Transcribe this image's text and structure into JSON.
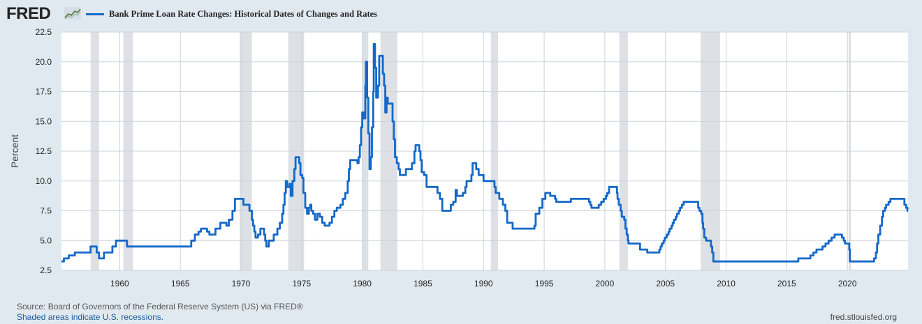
{
  "header": {
    "logo_text": "FRED",
    "logo_icon": "line-chart-icon"
  },
  "chart_data": {
    "type": "line",
    "title": "Bank Prime Loan Rate Changes: Historical Dates of Changes and Rates",
    "xlabel": "",
    "ylabel": "Percent",
    "xlim": [
      1955.2,
      2025.0
    ],
    "ylim": [
      2.5,
      22.5
    ],
    "yticks": [
      "2.5",
      "5.0",
      "7.5",
      "10.0",
      "12.5",
      "15.0",
      "17.5",
      "20.0",
      "22.5"
    ],
    "xticks": [
      "1960",
      "1965",
      "1970",
      "1975",
      "1980",
      "1985",
      "1990",
      "1995",
      "2000",
      "2005",
      "2010",
      "2015",
      "2020"
    ],
    "grid": true,
    "legend_position": "top-left",
    "series": [
      {
        "name": "Bank Prime Loan Rate Changes: Historical Dates of Changes and Rates",
        "color": "#1468c8",
        "step": true,
        "points": [
          [
            1955.2,
            3.25
          ],
          [
            1955.4,
            3.5
          ],
          [
            1955.8,
            3.75
          ],
          [
            1956.3,
            4.0
          ],
          [
            1957.6,
            4.5
          ],
          [
            1958.1,
            4.0
          ],
          [
            1958.3,
            3.5
          ],
          [
            1958.7,
            4.0
          ],
          [
            1959.4,
            4.5
          ],
          [
            1959.7,
            5.0
          ],
          [
            1960.6,
            4.5
          ],
          [
            1965.9,
            5.0
          ],
          [
            1966.2,
            5.5
          ],
          [
            1966.5,
            5.75
          ],
          [
            1966.7,
            6.0
          ],
          [
            1967.2,
            5.75
          ],
          [
            1967.4,
            5.5
          ],
          [
            1967.9,
            6.0
          ],
          [
            1968.3,
            6.5
          ],
          [
            1968.8,
            6.25
          ],
          [
            1969.0,
            6.75
          ],
          [
            1969.3,
            7.5
          ],
          [
            1969.5,
            8.5
          ],
          [
            1970.2,
            8.0
          ],
          [
            1970.7,
            7.5
          ],
          [
            1970.9,
            6.75
          ],
          [
            1971.0,
            6.25
          ],
          [
            1971.1,
            5.75
          ],
          [
            1971.2,
            5.25
          ],
          [
            1971.4,
            5.5
          ],
          [
            1971.6,
            6.0
          ],
          [
            1971.9,
            5.5
          ],
          [
            1972.0,
            5.0
          ],
          [
            1972.1,
            4.5
          ],
          [
            1972.3,
            5.0
          ],
          [
            1972.7,
            5.5
          ],
          [
            1973.0,
            6.0
          ],
          [
            1973.2,
            6.5
          ],
          [
            1973.4,
            7.25
          ],
          [
            1973.5,
            8.0
          ],
          [
            1973.6,
            9.0
          ],
          [
            1973.7,
            10.0
          ],
          [
            1973.8,
            9.5
          ],
          [
            1974.0,
            9.75
          ],
          [
            1974.1,
            8.75
          ],
          [
            1974.25,
            10.0
          ],
          [
            1974.4,
            11.0
          ],
          [
            1974.5,
            12.0
          ],
          [
            1974.8,
            11.5
          ],
          [
            1974.9,
            10.5
          ],
          [
            1975.05,
            10.25
          ],
          [
            1975.15,
            9.0
          ],
          [
            1975.3,
            7.75
          ],
          [
            1975.45,
            7.25
          ],
          [
            1975.6,
            7.75
          ],
          [
            1975.7,
            8.0
          ],
          [
            1975.8,
            7.5
          ],
          [
            1975.95,
            7.25
          ],
          [
            1976.1,
            6.75
          ],
          [
            1976.3,
            7.25
          ],
          [
            1976.5,
            7.0
          ],
          [
            1976.7,
            6.5
          ],
          [
            1976.9,
            6.25
          ],
          [
            1977.3,
            6.5
          ],
          [
            1977.5,
            7.0
          ],
          [
            1977.7,
            7.5
          ],
          [
            1977.9,
            7.75
          ],
          [
            1978.2,
            8.0
          ],
          [
            1978.4,
            8.5
          ],
          [
            1978.6,
            9.0
          ],
          [
            1978.8,
            10.0
          ],
          [
            1978.9,
            11.0
          ],
          [
            1979.0,
            11.75
          ],
          [
            1979.6,
            11.5
          ],
          [
            1979.7,
            12.0
          ],
          [
            1979.8,
            13.0
          ],
          [
            1979.9,
            14.5
          ],
          [
            1980.0,
            15.75
          ],
          [
            1980.1,
            15.25
          ],
          [
            1980.25,
            18.0
          ],
          [
            1980.3,
            20.0
          ],
          [
            1980.4,
            17.0
          ],
          [
            1980.5,
            14.0
          ],
          [
            1980.6,
            11.0
          ],
          [
            1980.7,
            12.0
          ],
          [
            1980.8,
            14.5
          ],
          [
            1980.9,
            17.5
          ],
          [
            1980.95,
            21.5
          ],
          [
            1981.05,
            19.5
          ],
          [
            1981.15,
            17.0
          ],
          [
            1981.3,
            18.0
          ],
          [
            1981.4,
            20.5
          ],
          [
            1981.7,
            19.0
          ],
          [
            1981.8,
            18.0
          ],
          [
            1981.9,
            15.75
          ],
          [
            1982.0,
            17.0
          ],
          [
            1982.1,
            16.5
          ],
          [
            1982.5,
            15.0
          ],
          [
            1982.6,
            13.5
          ],
          [
            1982.7,
            12.0
          ],
          [
            1982.85,
            11.5
          ],
          [
            1983.0,
            11.0
          ],
          [
            1983.1,
            10.5
          ],
          [
            1983.6,
            11.0
          ],
          [
            1984.1,
            11.5
          ],
          [
            1984.3,
            12.5
          ],
          [
            1984.4,
            13.0
          ],
          [
            1984.7,
            12.5
          ],
          [
            1984.8,
            11.75
          ],
          [
            1984.9,
            10.75
          ],
          [
            1985.1,
            10.5
          ],
          [
            1985.3,
            9.5
          ],
          [
            1986.2,
            9.0
          ],
          [
            1986.4,
            8.5
          ],
          [
            1986.6,
            7.5
          ],
          [
            1987.3,
            8.0
          ],
          [
            1987.5,
            8.25
          ],
          [
            1987.7,
            9.25
          ],
          [
            1987.8,
            8.75
          ],
          [
            1988.3,
            9.0
          ],
          [
            1988.5,
            9.5
          ],
          [
            1988.6,
            10.0
          ],
          [
            1989.0,
            10.5
          ],
          [
            1989.1,
            11.5
          ],
          [
            1989.4,
            11.0
          ],
          [
            1989.6,
            10.5
          ],
          [
            1990.0,
            10.0
          ],
          [
            1990.9,
            9.5
          ],
          [
            1991.0,
            9.0
          ],
          [
            1991.3,
            8.5
          ],
          [
            1991.6,
            8.0
          ],
          [
            1991.8,
            7.5
          ],
          [
            1991.95,
            6.5
          ],
          [
            1992.4,
            6.0
          ],
          [
            1994.2,
            6.25
          ],
          [
            1994.3,
            7.25
          ],
          [
            1994.6,
            7.75
          ],
          [
            1994.85,
            8.5
          ],
          [
            1995.1,
            9.0
          ],
          [
            1995.5,
            8.75
          ],
          [
            1995.9,
            8.5
          ],
          [
            1996.0,
            8.25
          ],
          [
            1997.2,
            8.5
          ],
          [
            1998.7,
            8.25
          ],
          [
            1998.8,
            8.0
          ],
          [
            1998.9,
            7.75
          ],
          [
            1999.5,
            8.0
          ],
          [
            1999.7,
            8.25
          ],
          [
            1999.9,
            8.5
          ],
          [
            2000.1,
            8.75
          ],
          [
            2000.2,
            9.0
          ],
          [
            2000.35,
            9.5
          ],
          [
            2001.0,
            9.0
          ],
          [
            2001.05,
            8.5
          ],
          [
            2001.15,
            8.0
          ],
          [
            2001.3,
            7.5
          ],
          [
            2001.4,
            7.0
          ],
          [
            2001.6,
            6.75
          ],
          [
            2001.7,
            6.0
          ],
          [
            2001.8,
            5.5
          ],
          [
            2001.9,
            5.0
          ],
          [
            2001.95,
            4.75
          ],
          [
            2002.9,
            4.25
          ],
          [
            2003.5,
            4.0
          ],
          [
            2004.5,
            4.25
          ],
          [
            2004.6,
            4.5
          ],
          [
            2004.7,
            4.75
          ],
          [
            2004.85,
            5.0
          ],
          [
            2004.95,
            5.25
          ],
          [
            2005.1,
            5.5
          ],
          [
            2005.25,
            5.75
          ],
          [
            2005.35,
            6.0
          ],
          [
            2005.5,
            6.25
          ],
          [
            2005.6,
            6.5
          ],
          [
            2005.7,
            6.75
          ],
          [
            2005.85,
            7.0
          ],
          [
            2005.95,
            7.25
          ],
          [
            2006.1,
            7.5
          ],
          [
            2006.2,
            7.75
          ],
          [
            2006.35,
            8.0
          ],
          [
            2006.5,
            8.25
          ],
          [
            2007.7,
            7.75
          ],
          [
            2007.8,
            7.5
          ],
          [
            2007.95,
            7.25
          ],
          [
            2008.05,
            6.5
          ],
          [
            2008.1,
            6.0
          ],
          [
            2008.2,
            5.25
          ],
          [
            2008.35,
            5.0
          ],
          [
            2008.75,
            4.5
          ],
          [
            2008.85,
            4.0
          ],
          [
            2008.95,
            3.25
          ],
          [
            2015.95,
            3.5
          ],
          [
            2016.95,
            3.75
          ],
          [
            2017.2,
            4.0
          ],
          [
            2017.45,
            4.25
          ],
          [
            2017.95,
            4.5
          ],
          [
            2018.2,
            4.75
          ],
          [
            2018.45,
            5.0
          ],
          [
            2018.7,
            5.25
          ],
          [
            2018.95,
            5.5
          ],
          [
            2019.55,
            5.25
          ],
          [
            2019.7,
            5.0
          ],
          [
            2019.8,
            4.75
          ],
          [
            2020.15,
            4.25
          ],
          [
            2020.2,
            3.25
          ],
          [
            2022.2,
            3.5
          ],
          [
            2022.35,
            4.0
          ],
          [
            2022.45,
            4.75
          ],
          [
            2022.55,
            5.5
          ],
          [
            2022.7,
            6.25
          ],
          [
            2022.85,
            7.0
          ],
          [
            2022.95,
            7.5
          ],
          [
            2023.1,
            7.75
          ],
          [
            2023.2,
            8.0
          ],
          [
            2023.4,
            8.25
          ],
          [
            2023.55,
            8.5
          ],
          [
            2024.7,
            8.0
          ],
          [
            2024.85,
            7.75
          ],
          [
            2024.95,
            7.5
          ],
          [
            2025.0,
            7.5
          ]
        ]
      }
    ],
    "recessions": [
      [
        1957.6,
        1958.3
      ],
      [
        1960.3,
        1961.1
      ],
      [
        1969.9,
        1970.9
      ],
      [
        1973.9,
        1975.2
      ],
      [
        1980.0,
        1980.5
      ],
      [
        1981.5,
        1982.9
      ],
      [
        1990.6,
        1991.2
      ],
      [
        2001.2,
        2001.9
      ],
      [
        2007.9,
        2009.5
      ],
      [
        2020.1,
        2020.3
      ]
    ]
  },
  "footer": {
    "source": "Source: Board of Governors of the Federal Reserve System (US) via FRED®",
    "note": "Shaded areas indicate U.S. recessions.",
    "url": "fred.stlouisfed.org"
  }
}
